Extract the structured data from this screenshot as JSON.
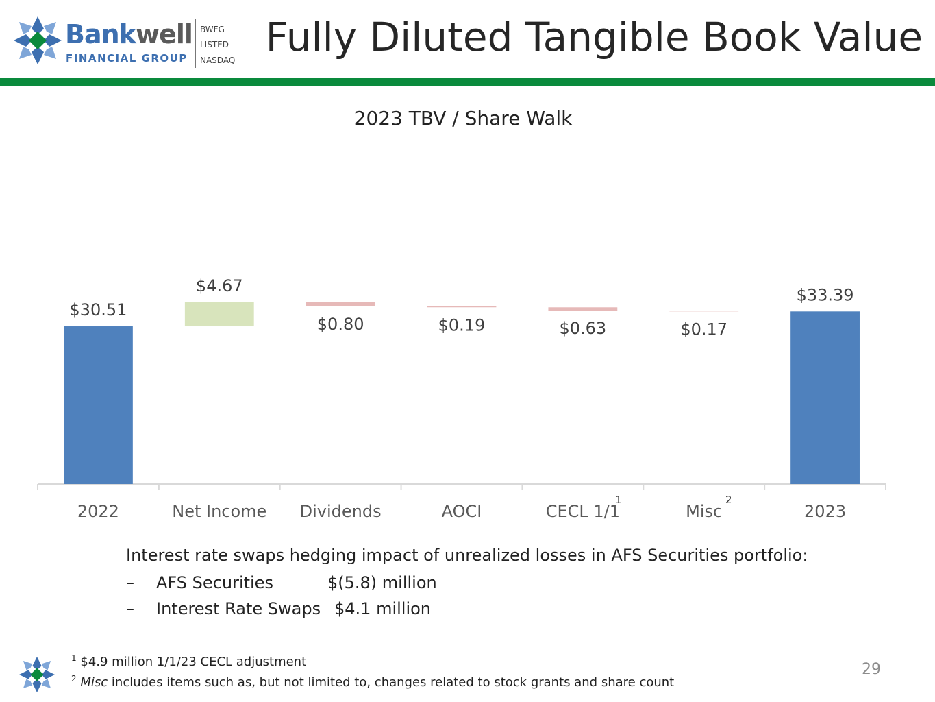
{
  "header": {
    "logo_bank": "Bank",
    "logo_well": "well",
    "logo_sub": "FINANCIAL GROUP",
    "ticker_symbol": "BWFG",
    "ticker_listed": "LISTED",
    "ticker_exchange": "NASDAQ",
    "title": "Fully Diluted Tangible Book Value"
  },
  "colors": {
    "total_bar": "#4f81bd",
    "increase_bar": "#d8e4bc",
    "decrease_bar": "#e6b9b8",
    "brand_green": "#0a8a3c",
    "brand_blue": "#3d6fb0"
  },
  "chart_data": {
    "type": "waterfall",
    "title": "2023 TBV / Share Walk",
    "categories": [
      "2022",
      "Net Income",
      "Dividends",
      "AOCI",
      "CECL 1/1",
      "Misc",
      "2023"
    ],
    "category_superscripts": [
      "",
      "",
      "",
      "",
      "1",
      "2",
      ""
    ],
    "values": [
      30.51,
      4.67,
      -0.8,
      -0.19,
      -0.63,
      -0.17,
      33.39
    ],
    "kinds": [
      "total",
      "increase",
      "decrease",
      "decrease",
      "decrease",
      "decrease",
      "total"
    ],
    "labels": [
      "$30.51",
      "$4.67",
      "$0.80",
      "$0.19",
      "$0.63",
      "$0.17",
      "$33.39"
    ],
    "ylim": [
      0,
      36
    ],
    "xlabel": "",
    "ylabel": "",
    "grid": false
  },
  "notes": {
    "intro": "Interest rate swaps hedging impact of unrealized losses in AFS Securities portfolio:",
    "items": [
      {
        "dash": "–",
        "label": "AFS Securities",
        "value": "$(5.8) million"
      },
      {
        "dash": "–",
        "label": "Interest Rate Swaps",
        "value": "$4.1 million"
      }
    ]
  },
  "footnotes": {
    "f1_mark": "1",
    "f1_text": "$4.9 million 1/1/23 CECL adjustment",
    "f2_mark": "2",
    "f2_em": "Misc",
    "f2_text": " includes items such as, but not limited to, changes related to stock grants and share count"
  },
  "page_number": "29"
}
